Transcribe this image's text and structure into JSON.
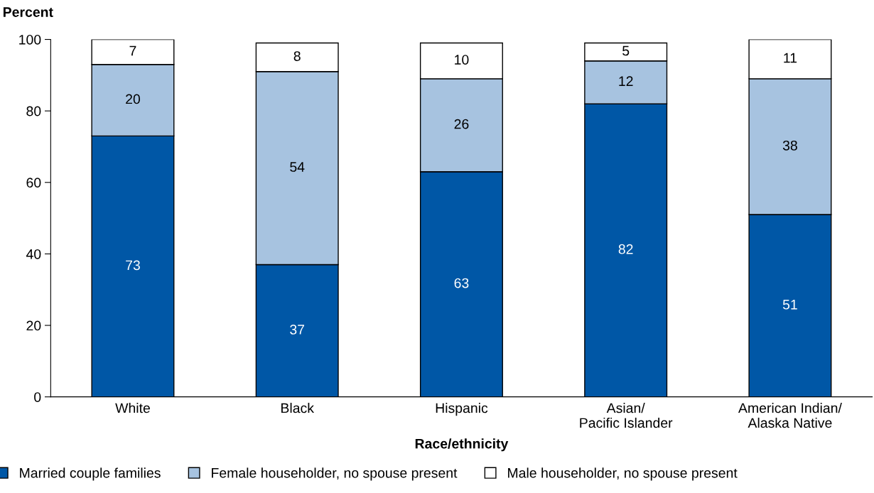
{
  "chart_data": {
    "type": "bar",
    "stacked": true,
    "ylabel": "Percent",
    "xlabel": "Race/ethnicity",
    "categories": [
      "White",
      "Black",
      "Hispanic",
      "Asian/\nPacific Islander",
      "American Indian/\nAlaska Native"
    ],
    "series": [
      {
        "name": "Married couple families",
        "color": "#0057a6",
        "values": [
          73,
          37,
          63,
          82,
          51
        ]
      },
      {
        "name": "Female householder, no spouse present",
        "color": "#a7c3e0",
        "values": [
          20,
          54,
          26,
          12,
          38
        ]
      },
      {
        "name": "Male householder, no spouse present",
        "color": "#ffffff",
        "values": [
          7,
          8,
          10,
          5,
          11
        ]
      }
    ],
    "ylim": [
      0,
      100
    ],
    "yticks": [
      0,
      20,
      40,
      60,
      80,
      100
    ],
    "data_labels": true,
    "grid": false,
    "legend": "bottom"
  }
}
